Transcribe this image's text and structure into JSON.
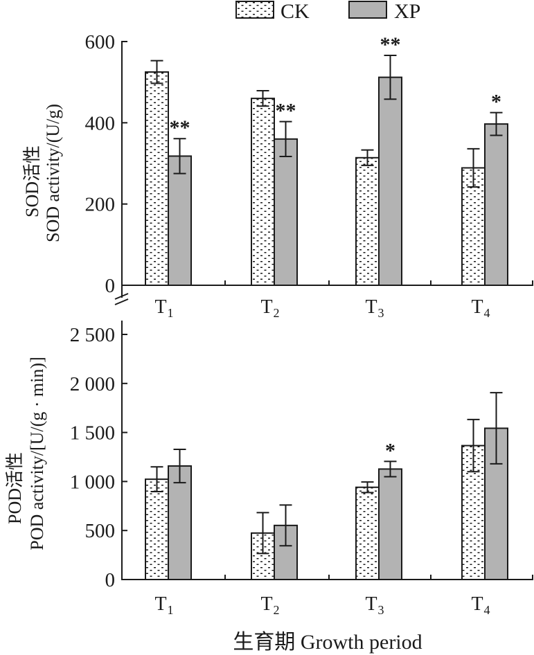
{
  "legend": {
    "items": [
      {
        "label": "CK",
        "pattern": "dotted",
        "color": "#ffffff"
      },
      {
        "label": "XP",
        "pattern": "solid",
        "color": "#b3b3b3"
      }
    ]
  },
  "x_axis_title": "生育期 Growth period",
  "colors": {
    "axis": "#1a1a1a",
    "ck_fill": "#ffffff",
    "xp_fill": "#b3b3b3"
  },
  "chart_data": [
    {
      "type": "bar",
      "title": "",
      "ylabel_line1": "SOD活性",
      "ylabel_line2": "SOD activity/(U/g)",
      "xlabel": "生育期 Growth period",
      "categories": [
        {
          "base": "T",
          "sub": "1"
        },
        {
          "base": "T",
          "sub": "2"
        },
        {
          "base": "T",
          "sub": "3"
        },
        {
          "base": "T",
          "sub": "4"
        }
      ],
      "ylim": [
        0,
        600
      ],
      "yticks": [
        0,
        200,
        400,
        600
      ],
      "ytick_labels": [
        "0",
        "200",
        "400",
        "600"
      ],
      "grid": false,
      "legend_position": "top",
      "series": [
        {
          "name": "CK",
          "values": [
            525,
            460,
            314,
            289
          ],
          "errors": [
            28,
            19,
            19,
            47
          ],
          "marks": [
            "",
            "",
            "",
            ""
          ]
        },
        {
          "name": "XP",
          "values": [
            318,
            360,
            512,
            397
          ],
          "errors": [
            43,
            43,
            54,
            28
          ],
          "marks": [
            "**",
            "**",
            "**",
            "*"
          ]
        }
      ]
    },
    {
      "type": "bar",
      "title": "",
      "ylabel_line1": "POD活性",
      "ylabel_line2": "POD activity/[U/(g · min)]",
      "xlabel": "生育期 Growth period",
      "categories": [
        {
          "base": "T",
          "sub": "1"
        },
        {
          "base": "T",
          "sub": "2"
        },
        {
          "base": "T",
          "sub": "3"
        },
        {
          "base": "T",
          "sub": "4"
        }
      ],
      "ylim": [
        0,
        2500
      ],
      "yticks": [
        0,
        500,
        1000,
        1500,
        2000,
        2500
      ],
      "ytick_labels": [
        "0",
        "500",
        "1 000",
        "1 500",
        "2 000",
        "2 500"
      ],
      "grid": false,
      "legend_position": "top",
      "series": [
        {
          "name": "CK",
          "values": [
            1023,
            474,
            941,
            1366
          ],
          "errors": [
            126,
            208,
            54,
            266
          ],
          "marks": [
            "",
            "",
            "",
            ""
          ]
        },
        {
          "name": "XP",
          "values": [
            1158,
            552,
            1127,
            1543
          ],
          "errors": [
            170,
            208,
            78,
            363
          ],
          "marks": [
            "",
            "",
            "*",
            ""
          ]
        }
      ]
    }
  ]
}
